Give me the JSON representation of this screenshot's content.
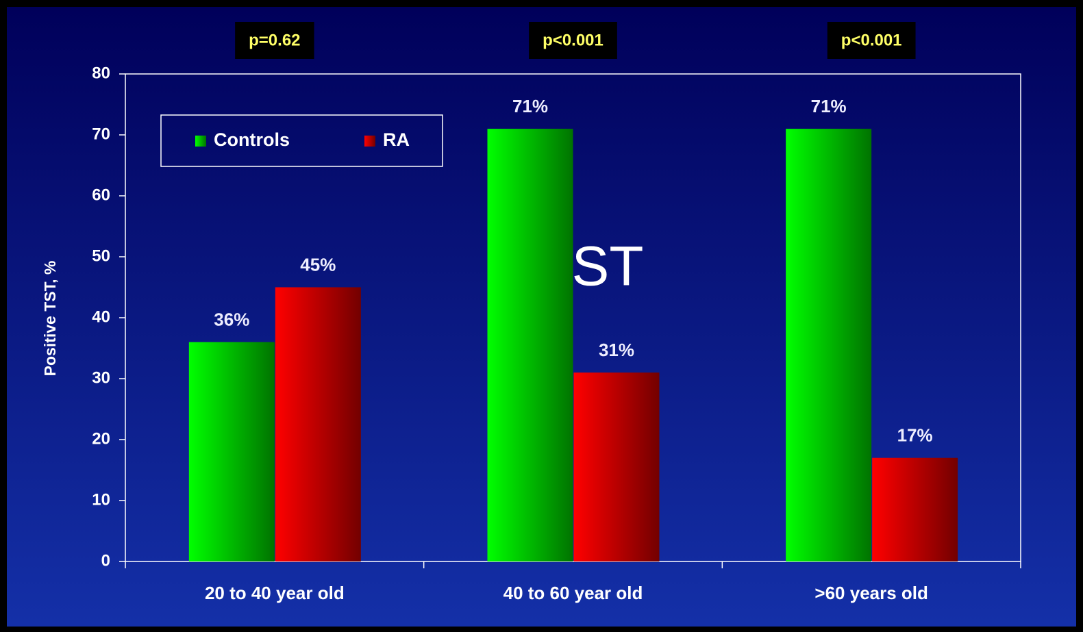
{
  "chart_data": {
    "type": "bar",
    "y_label": "Positive TST, %",
    "categories": [
      "20 to 40 year old",
      "40 to 60 year old",
      ">60 years old"
    ],
    "series": [
      {
        "name": "Controls",
        "color": "#00ff00",
        "values": [
          36,
          71,
          71
        ],
        "value_labels": [
          "36%",
          "71%",
          "71%"
        ]
      },
      {
        "name": "RA",
        "color": "#ff0000",
        "values": [
          45,
          31,
          17
        ],
        "value_labels": [
          "45%",
          "31%",
          "17%"
        ]
      }
    ],
    "annotations": [
      "p=0.62",
      "p<0.001",
      "p<0.001"
    ],
    "overlay_text": "TST",
    "ylim": [
      0,
      80
    ],
    "yticks": [
      0,
      10,
      20,
      30,
      40,
      50,
      60,
      70,
      80
    ],
    "legend": "top-left",
    "grid": false
  }
}
